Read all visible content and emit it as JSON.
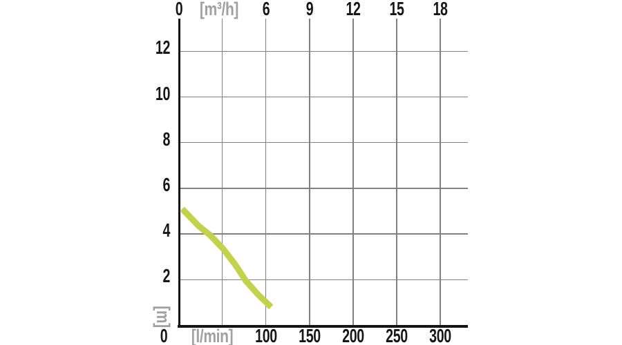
{
  "chart_data": {
    "type": "line",
    "grid": "on",
    "legend": "none",
    "x_axis_top": {
      "unit": "[m³/h]",
      "ticks": [
        0,
        6,
        9,
        12,
        15,
        18
      ]
    },
    "x_axis_bottom": {
      "unit": "[l/min]",
      "origin_label": "0",
      "ticks": [
        100,
        150,
        200,
        250,
        300
      ]
    },
    "y_axis": {
      "unit": "[m]",
      "ticks": [
        2,
        4,
        6,
        8,
        10,
        12
      ]
    },
    "x_range_lmin": [
      0,
      331
    ],
    "y_range_m": [
      0,
      13.4
    ],
    "unit_relation": "3 m³/h = 50 l/min (shared vertical gridlines)",
    "vgrid_lmin": [
      50,
      100,
      150,
      200,
      250,
      300
    ],
    "hgrid_m": [
      2,
      4,
      6,
      8,
      10,
      12
    ],
    "series": [
      {
        "name": "pump-head-curve",
        "color": "#c3d24c",
        "points_lmin_m": [
          [
            4,
            5.1
          ],
          [
            23,
            4.35
          ],
          [
            36,
            3.95
          ],
          [
            51,
            3.35
          ],
          [
            65,
            2.65
          ],
          [
            77,
            1.95
          ],
          [
            91,
            1.35
          ],
          [
            106,
            0.8
          ]
        ]
      }
    ],
    "colors": {
      "tick_label": "#161616",
      "unit_label": "#a0a0a0",
      "gridline": "#808080",
      "axis": "#141414",
      "background": "#ffffff"
    }
  }
}
